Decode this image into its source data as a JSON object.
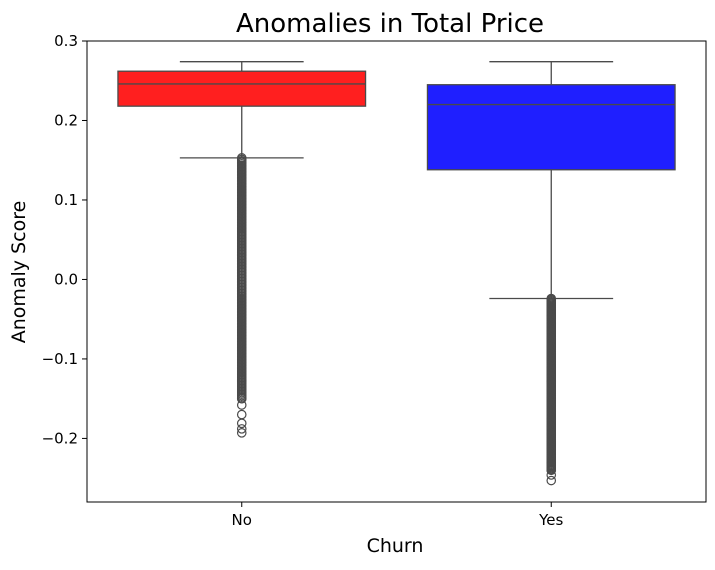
{
  "chart_data": {
    "type": "box",
    "title": "Anomalies in Total Price",
    "xlabel": "Churn",
    "ylabel": "Anomaly Score",
    "categories": [
      "No",
      "Yes"
    ],
    "ylim": [
      -0.28,
      0.3
    ],
    "yticks": [
      -0.2,
      -0.1,
      0.0,
      0.1,
      0.2,
      0.3
    ],
    "ytick_labels": [
      "−0.2",
      "−0.1",
      "0.0",
      "0.1",
      "0.2",
      "0.3"
    ],
    "grid": false,
    "series": [
      {
        "category": "No",
        "color": "#ff0000",
        "q1": 0.218,
        "median": 0.246,
        "q3": 0.262,
        "whisker_low": 0.153,
        "whisker_high": 0.274,
        "outliers_range": [
          -0.193,
          0.153
        ],
        "outliers_sparse": [
          -0.193,
          -0.188,
          -0.181,
          -0.17,
          -0.158,
          -0.15
        ]
      },
      {
        "category": "Yes",
        "color": "#0000ff",
        "q1": 0.138,
        "median": 0.22,
        "q3": 0.245,
        "whisker_low": -0.024,
        "whisker_high": 0.274,
        "outliers_range": [
          -0.253,
          -0.024
        ],
        "outliers_sparse": [
          -0.253,
          -0.246,
          -0.24
        ]
      }
    ]
  }
}
